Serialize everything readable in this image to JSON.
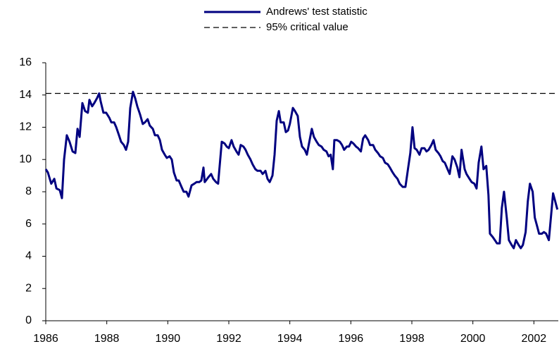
{
  "chart_data": {
    "type": "line",
    "x": [
      1986.0,
      1986.07,
      1986.18,
      1986.28,
      1986.35,
      1986.46,
      1986.53,
      1986.6,
      1986.69,
      1986.78,
      1986.88,
      1986.97,
      1987.04,
      1987.11,
      1987.2,
      1987.29,
      1987.38,
      1987.43,
      1987.52,
      1987.59,
      1987.68,
      1987.75,
      1987.8,
      1987.89,
      1987.98,
      1988.08,
      1988.15,
      1988.24,
      1988.31,
      1988.4,
      1988.47,
      1988.56,
      1988.63,
      1988.7,
      1988.77,
      1988.86,
      1988.93,
      1989.0,
      1989.09,
      1989.18,
      1989.25,
      1989.34,
      1989.41,
      1989.51,
      1989.58,
      1989.67,
      1989.74,
      1989.81,
      1989.9,
      1989.97,
      1990.06,
      1990.13,
      1990.2,
      1990.29,
      1990.36,
      1990.45,
      1990.52,
      1990.61,
      1990.68,
      1990.78,
      1990.87,
      1990.94,
      1991.03,
      1991.1,
      1991.17,
      1991.21,
      1991.33,
      1991.42,
      1991.49,
      1991.58,
      1991.65,
      1991.77,
      1991.86,
      1991.93,
      1992.0,
      1992.09,
      1992.16,
      1992.25,
      1992.32,
      1992.39,
      1992.48,
      1992.55,
      1992.62,
      1992.71,
      1992.78,
      1992.87,
      1992.94,
      1993.04,
      1993.11,
      1993.2,
      1993.27,
      1993.34,
      1993.43,
      1993.5,
      1993.57,
      1993.64,
      1993.7,
      1993.8,
      1993.87,
      1993.94,
      1994.0,
      1994.1,
      1994.17,
      1994.26,
      1994.33,
      1994.4,
      1994.49,
      1994.56,
      1994.65,
      1994.72,
      1994.79,
      1994.88,
      1994.95,
      1995.04,
      1995.11,
      1995.2,
      1995.27,
      1995.34,
      1995.41,
      1995.46,
      1995.55,
      1995.64,
      1995.71,
      1995.78,
      1995.87,
      1995.94,
      1996.01,
      1996.08,
      1996.17,
      1996.24,
      1996.33,
      1996.4,
      1996.47,
      1996.57,
      1996.63,
      1996.73,
      1996.8,
      1996.89,
      1996.96,
      1997.05,
      1997.12,
      1997.21,
      1997.28,
      1997.37,
      1997.44,
      1997.53,
      1997.6,
      1997.7,
      1997.79,
      1997.88,
      1997.95,
      1998.02,
      1998.09,
      1998.16,
      1998.25,
      1998.32,
      1998.41,
      1998.48,
      1998.55,
      1998.64,
      1998.71,
      1998.78,
      1998.87,
      1998.94,
      1999.01,
      1999.08,
      1999.17,
      1999.24,
      1999.33,
      1999.4,
      1999.49,
      1999.56,
      1999.63,
      1999.73,
      1999.79,
      1999.89,
      1999.96,
      2000.05,
      2000.12,
      2000.19,
      2000.28,
      2000.35,
      2000.44,
      2000.51,
      2000.56,
      2000.65,
      2000.72,
      2000.79,
      2000.88,
      2000.95,
      2001.02,
      2001.11,
      2001.18,
      2001.27,
      2001.34,
      2001.41,
      2001.5,
      2001.57,
      2001.64,
      2001.73,
      2001.8,
      2001.87,
      2001.96,
      2002.03,
      2002.1,
      2002.17,
      2002.26,
      2002.33,
      2002.4,
      2002.49,
      2002.63,
      2002.77
    ],
    "series": [
      {
        "name": "Andrews' test statistic",
        "color": "#000080",
        "values": [
          9.4,
          9.2,
          8.5,
          8.8,
          8.2,
          8.1,
          7.6,
          10.0,
          11.5,
          11.1,
          10.5,
          10.4,
          11.9,
          11.4,
          13.5,
          13.0,
          12.9,
          13.7,
          13.3,
          13.5,
          13.8,
          14.1,
          13.6,
          12.9,
          12.9,
          12.6,
          12.3,
          12.3,
          12.0,
          11.5,
          11.1,
          10.9,
          10.6,
          11.1,
          13.2,
          14.2,
          13.8,
          13.3,
          12.8,
          12.2,
          12.3,
          12.5,
          12.1,
          11.9,
          11.5,
          11.5,
          11.2,
          10.6,
          10.3,
          10.1,
          10.2,
          10.0,
          9.2,
          8.7,
          8.7,
          8.3,
          8.0,
          8.0,
          7.7,
          8.4,
          8.5,
          8.6,
          8.6,
          8.7,
          9.5,
          8.6,
          8.9,
          9.1,
          8.8,
          8.6,
          8.5,
          11.1,
          11.0,
          10.8,
          10.7,
          11.2,
          10.8,
          10.5,
          10.3,
          10.9,
          10.8,
          10.6,
          10.3,
          10.0,
          9.7,
          9.4,
          9.3,
          9.3,
          9.1,
          9.3,
          8.8,
          8.6,
          9.0,
          10.3,
          12.4,
          13.0,
          12.3,
          12.3,
          11.7,
          11.8,
          12.2,
          13.2,
          13.0,
          12.7,
          11.4,
          10.8,
          10.6,
          10.3,
          11.2,
          11.9,
          11.4,
          11.1,
          10.9,
          10.8,
          10.6,
          10.5,
          10.2,
          10.3,
          9.4,
          11.2,
          11.2,
          11.1,
          10.9,
          10.6,
          10.8,
          10.8,
          11.1,
          11.0,
          10.8,
          10.7,
          10.5,
          11.3,
          11.5,
          11.2,
          10.9,
          10.9,
          10.6,
          10.4,
          10.2,
          10.1,
          9.8,
          9.7,
          9.5,
          9.2,
          9.0,
          8.8,
          8.5,
          8.3,
          8.3,
          9.5,
          10.4,
          12.0,
          10.7,
          10.6,
          10.3,
          10.7,
          10.7,
          10.5,
          10.6,
          10.9,
          11.2,
          10.6,
          10.4,
          10.2,
          9.9,
          9.8,
          9.4,
          9.1,
          10.2,
          10.0,
          9.5,
          8.9,
          10.6,
          9.4,
          9.1,
          8.8,
          8.6,
          8.5,
          8.2,
          9.8,
          10.8,
          9.4,
          9.6,
          7.8,
          5.4,
          5.2,
          5.0,
          4.8,
          4.8,
          7.0,
          8.0,
          6.4,
          5.0,
          4.7,
          4.5,
          5.0,
          4.7,
          4.5,
          4.7,
          5.5,
          7.4,
          8.5,
          8.0,
          6.4,
          5.9,
          5.4,
          5.4,
          5.5,
          5.4,
          5.0,
          7.9,
          6.9
        ]
      }
    ],
    "reference_line": {
      "name": "95% critical value",
      "value": 14.1,
      "color": "#000000",
      "dashed": true
    },
    "xlim": [
      1986,
      2002.8
    ],
    "xticks": [
      1986,
      1988,
      1990,
      1992,
      1994,
      1996,
      1998,
      2000,
      2002
    ],
    "ylim": [
      0,
      16
    ],
    "yticks": [
      0,
      2,
      4,
      6,
      8,
      10,
      12,
      14,
      16
    ],
    "grid": false,
    "legend": "top"
  }
}
